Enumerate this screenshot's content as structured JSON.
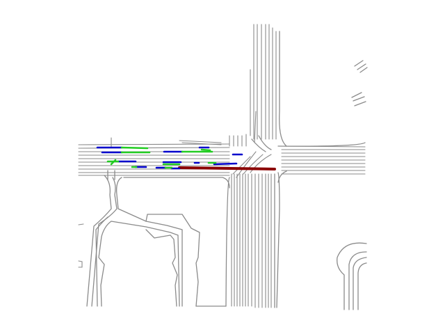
{
  "map": {
    "legend_colors": {
      "road": "#8a8a8a",
      "ego_history": "#8b0000",
      "agent_history": "#0000cc",
      "agent_future": "#22cc22"
    }
  }
}
